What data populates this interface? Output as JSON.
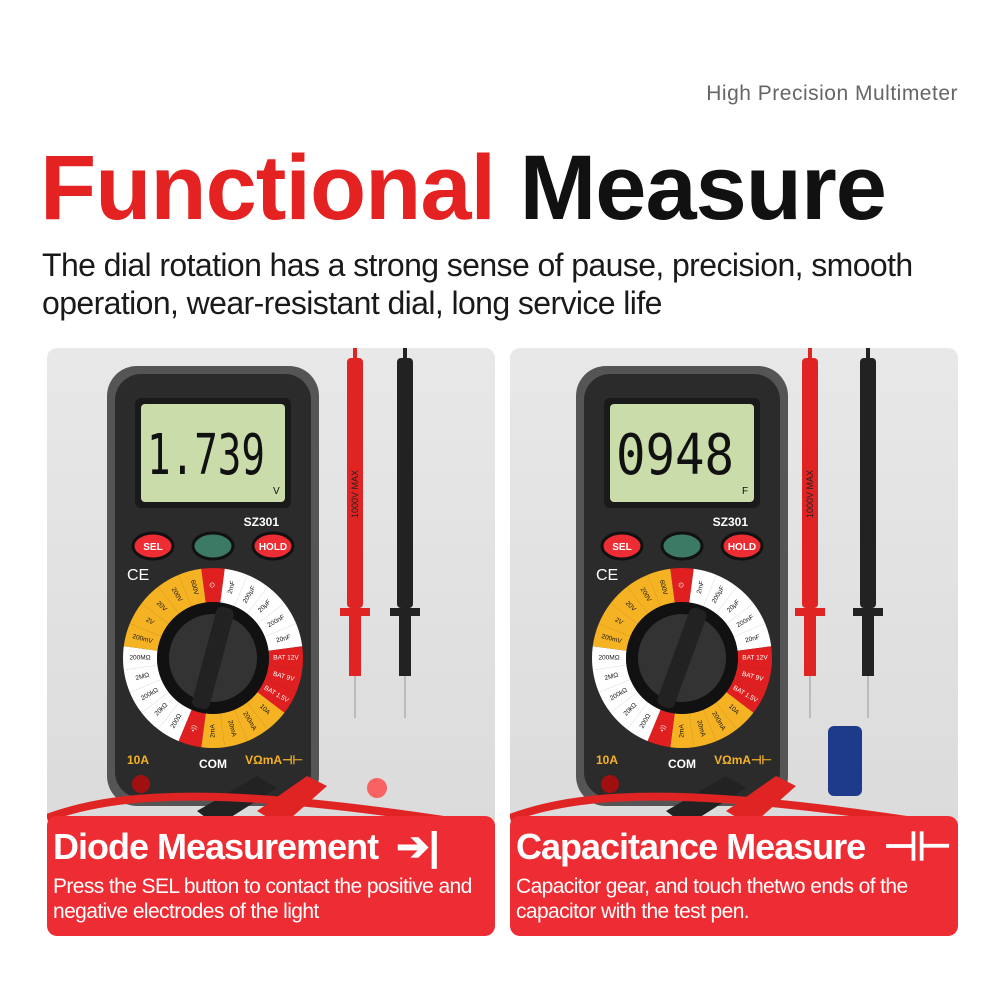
{
  "header": {
    "tagline": "High Precision Multimeter",
    "title_red": "Functional",
    "title_black": "Measure",
    "subtitle": "The dial rotation has a strong sense of pause, precision, smooth operation, wear-resistant dial, long service life"
  },
  "meter": {
    "model": "SZ301",
    "sel_label": "SEL",
    "hold_label": "HOLD",
    "ce_mark": "CE",
    "jack_10a": "10A",
    "jack_com": "COM",
    "jack_v": "VΩmA⊣⊢",
    "probe_rating": "1000V MAX",
    "dial": [
      [
        "⏻",
        "red"
      ],
      [
        "2mF",
        "white"
      ],
      [
        "200µF",
        "white"
      ],
      [
        "20µF",
        "white"
      ],
      [
        "200nF",
        "white"
      ],
      [
        "20nF",
        "white"
      ],
      [
        "BAT 12V",
        "red"
      ],
      [
        "BAT 9V",
        "red"
      ],
      [
        "BAT 1.5V",
        "red"
      ],
      [
        "10A",
        "yellow"
      ],
      [
        "200mA",
        "yellow"
      ],
      [
        "20mA",
        "yellow"
      ],
      [
        "2mA",
        "yellow"
      ],
      [
        "•))",
        "red"
      ],
      [
        "200Ω",
        "white"
      ],
      [
        "20kΩ",
        "white"
      ],
      [
        "200kΩ",
        "white"
      ],
      [
        "2MΩ",
        "white"
      ],
      [
        "200MΩ",
        "white"
      ],
      [
        "200mV",
        "yellow"
      ],
      [
        "2V",
        "yellow"
      ],
      [
        "20V",
        "yellow"
      ],
      [
        "200V",
        "yellow"
      ],
      [
        "600V",
        "yellow"
      ]
    ]
  },
  "panels": [
    {
      "reading": "1.739",
      "unit": "V",
      "title": "Diode Measurement",
      "icon": "diode-icon",
      "desc": "Press the SEL button to contact the positive and negative electrodes of the light"
    },
    {
      "reading": "0948",
      "unit": "F",
      "title": "Capacitance Measure",
      "icon": "capacitor-icon",
      "desc": "Capacitor gear, and touch thetwo ends of the capacitor with the test pen."
    }
  ],
  "colors": {
    "red": "#ee2c33",
    "yellow": "#f5b324",
    "lcd": "#c9dcaa",
    "body": "#2b2b2b"
  }
}
